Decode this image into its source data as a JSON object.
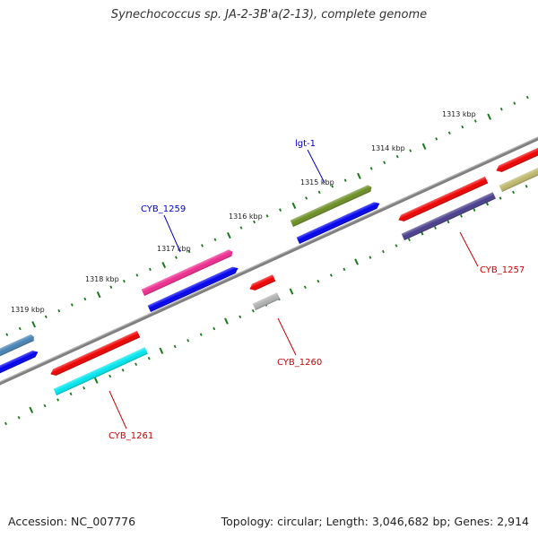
{
  "title": "Synechococcus sp. JA-2-3B'a(2-13), complete genome",
  "footer": {
    "accession": "Accession: NC_007776",
    "summary": "Topology: circular; Length: 3,046,682 bp; Genes: 2,914"
  },
  "scale_labels": [
    "1313 kbp",
    "1314 kbp",
    "1315 kbp",
    "1316 kbp",
    "1317 kbp",
    "1318 kbp",
    "1319 kbp"
  ],
  "gene_labels": [
    {
      "text": "lgt-1",
      "color": "#0000cc"
    },
    {
      "text": "CYB_1259",
      "color": "#0000cc"
    },
    {
      "text": "CYB_1257",
      "color": "#cc0000"
    },
    {
      "text": "CYB_1260",
      "color": "#cc0000"
    },
    {
      "text": "CYB_1261",
      "color": "#cc0000"
    }
  ],
  "colors": {
    "backbone": "#808080",
    "tick": "#1a7a1a",
    "red_gene": "#ee0000",
    "blue_gene": "#0000ee",
    "magenta_gene": "#ee2b8e",
    "olive_gene": "#6b8e23",
    "cyan_gene": "#00e5ee",
    "slate_gene": "#483d8b",
    "steel_gene": "#4682b4",
    "khaki_gene": "#bdb76b",
    "grey_gene": "#b0b0b0"
  }
}
